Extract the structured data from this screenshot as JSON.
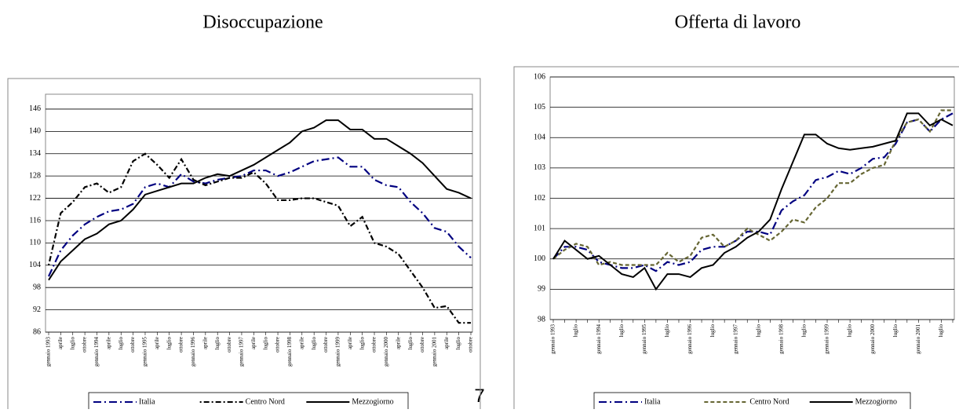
{
  "chart_data": [
    {
      "type": "line",
      "title": "Disoccupazione",
      "categories": [
        "gennaio 1993",
        "aprile",
        "luglio",
        "ottobre",
        "gennaio 1994",
        "aprile",
        "luglio",
        "ottobre",
        "gennaio 1995",
        "aprile",
        "luglio",
        "ottobre",
        "gennaio 1996",
        "aprile",
        "luglio",
        "ottobre",
        "gennaio 1997",
        "aprile",
        "luglio",
        "ottobre",
        "gennaio 1998",
        "aprile",
        "luglio",
        "ottobre",
        "gennaio 1999",
        "aprile",
        "luglio",
        "ottobre",
        "gennaio 2000",
        "aprile",
        "luglio",
        "ottobre",
        "gennaio 2001",
        "aprile",
        "luglio",
        "ottobre"
      ],
      "series": [
        {
          "name": "Italia",
          "color": "#000080",
          "style": "dash-dot",
          "values": [
            101,
            108,
            112,
            115,
            117,
            118.5,
            119,
            120.5,
            125,
            126,
            125,
            128.5,
            126.5,
            126,
            127,
            127.5,
            128,
            129.5,
            129.5,
            128,
            129,
            130.5,
            132,
            132.5,
            133,
            130.5,
            130.5,
            127,
            125.5,
            125,
            121,
            118,
            114,
            113,
            109,
            106
          ]
        },
        {
          "name": "Centro Nord",
          "color": "#000000",
          "style": "dotted-dash",
          "values": [
            104,
            118,
            121,
            125,
            126,
            123.5,
            125,
            132,
            134,
            131,
            127.5,
            132.5,
            127,
            125.5,
            126.5,
            127.5,
            127.5,
            129,
            126,
            121.5,
            121.5,
            122,
            122,
            121,
            120,
            114.5,
            117,
            110,
            109,
            107,
            102.5,
            98,
            92.5,
            93,
            88.5,
            88.5
          ]
        },
        {
          "name": "Mezzogiorno",
          "color": "#000000",
          "style": "solid",
          "values": [
            100,
            105,
            108,
            111,
            112.5,
            115,
            116,
            119,
            123,
            124,
            125,
            126,
            126,
            127.5,
            128.5,
            128,
            129.5,
            131,
            133,
            135,
            137,
            140,
            141,
            143,
            143,
            140.5,
            140.5,
            138,
            138,
            136,
            134,
            131.5,
            128,
            124.5,
            123.5,
            122
          ]
        }
      ],
      "ylim": [
        86,
        150
      ],
      "yticks": [
        86,
        92,
        98,
        104,
        110,
        116,
        122,
        128,
        134,
        140,
        146
      ],
      "grid": true,
      "legend": "bottom"
    },
    {
      "type": "line",
      "title": "Offerta di lavoro",
      "categories": [
        "gennaio 1993",
        null,
        "luglio",
        null,
        "gennaio 1994",
        null,
        "luglio",
        null,
        "gennaio 1995",
        null,
        "luglio",
        null,
        "gennaio 1996",
        null,
        "luglio",
        null,
        "gennaio 1997",
        null,
        "luglio",
        null,
        "gennaio 1998",
        null,
        "luglio",
        null,
        "gennaio 1999",
        null,
        "luglio",
        null,
        "gennaio 2000",
        null,
        "luglio",
        null,
        "gennaio 2001",
        null,
        "luglio",
        null
      ],
      "series": [
        {
          "name": "Italia",
          "color": "#000080",
          "style": "dash-dot",
          "values": [
            100,
            100.4,
            100.4,
            100.3,
            99.9,
            99.8,
            99.7,
            99.7,
            99.8,
            99.6,
            99.9,
            99.8,
            99.9,
            100.3,
            100.4,
            100.4,
            100.6,
            100.9,
            100.9,
            100.8,
            101.6,
            101.9,
            102.1,
            102.6,
            102.7,
            102.9,
            102.8,
            103,
            103.3,
            103.35,
            103.8,
            104.5,
            104.6,
            104.2,
            104.6,
            104.8
          ]
        },
        {
          "name": "Centro Nord",
          "color": "#666633",
          "style": "dashed",
          "values": [
            100,
            100.3,
            100.5,
            100.4,
            99.8,
            99.9,
            99.8,
            99.8,
            99.8,
            99.8,
            100.2,
            99.9,
            100.1,
            100.7,
            100.8,
            100.4,
            100.6,
            101,
            100.8,
            100.6,
            100.9,
            101.3,
            101.2,
            101.7,
            102,
            102.5,
            102.5,
            102.8,
            103,
            103.1,
            103.9,
            104.5,
            104.6,
            104.2,
            104.9,
            104.9
          ]
        },
        {
          "name": "Mezzogiorno",
          "color": "#000000",
          "style": "solid",
          "values": [
            100,
            100.6,
            100.3,
            100,
            100.1,
            99.8,
            99.5,
            99.4,
            99.7,
            99,
            99.5,
            99.5,
            99.4,
            99.7,
            99.8,
            100.2,
            100.4,
            100.7,
            100.9,
            101.3,
            102.3,
            103.2,
            104.1,
            104.1,
            103.8,
            103.65,
            103.6,
            103.65,
            103.7,
            103.8,
            103.9,
            104.8,
            104.8,
            104.4,
            104.6,
            104.4
          ]
        }
      ],
      "ylim": [
        98,
        106
      ],
      "yticks": [
        98,
        99,
        100,
        101,
        102,
        103,
        104,
        105,
        106
      ],
      "grid": true,
      "legend": "bottom"
    }
  ],
  "page_number": "7"
}
